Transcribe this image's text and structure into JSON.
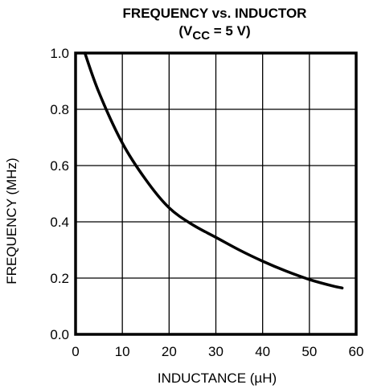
{
  "chart_data": {
    "type": "line",
    "title_line1": "FREQUENCY vs. INDUCTOR",
    "title_line2_prefix": "(V",
    "title_line2_sub": "CC",
    "title_line2_suffix": " = 5 V)",
    "xlabel": "INDUCTANCE (µH)",
    "ylabel": "FREQUENCY (MHz)",
    "xlim": [
      0,
      60
    ],
    "ylim": [
      0,
      1.0
    ],
    "x_ticks": [
      0,
      10,
      20,
      30,
      40,
      50,
      60
    ],
    "x_tick_labels": [
      "0",
      "10",
      "20",
      "30",
      "40",
      "50",
      "60"
    ],
    "y_ticks": [
      0.0,
      0.2,
      0.4,
      0.6,
      0.8,
      1.0
    ],
    "y_tick_labels": [
      "0.0",
      "0.2",
      "0.4",
      "0.6",
      "0.8",
      "1.0"
    ],
    "grid": true,
    "series": [
      {
        "x": [
          2,
          5,
          10,
          15,
          20,
          25,
          30,
          35,
          40,
          45,
          50,
          55,
          57
        ],
        "y": [
          1.0,
          0.86,
          0.68,
          0.55,
          0.45,
          0.39,
          0.345,
          0.3,
          0.26,
          0.225,
          0.195,
          0.172,
          0.165
        ]
      }
    ]
  }
}
